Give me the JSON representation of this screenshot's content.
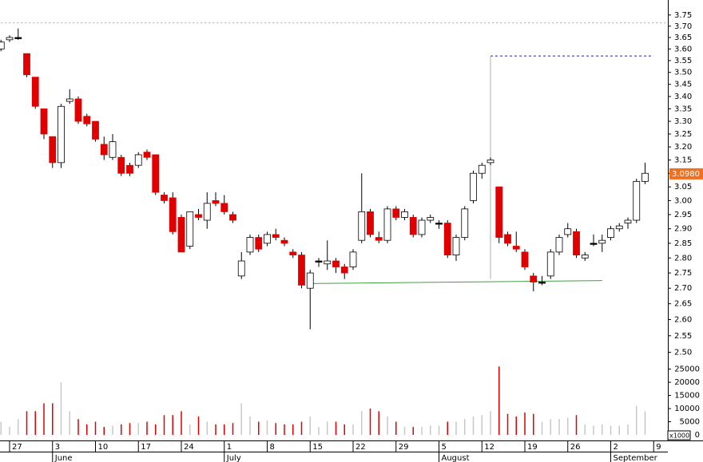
{
  "chart_data": {
    "type": "candlestick",
    "log_scale": true,
    "up_color": "#ffffff",
    "down_color": "#e00000",
    "doji_color": "#000000",
    "volume_color": "#c8c8c8",
    "categories": [
      null,
      "27",
      null,
      null,
      null,
      null,
      "3",
      null,
      null,
      null,
      null,
      "10",
      null,
      null,
      null,
      null,
      "17",
      null,
      null,
      null,
      null,
      "24",
      null,
      null,
      null,
      null,
      "1",
      null,
      null,
      null,
      null,
      "8",
      null,
      null,
      null,
      null,
      "15",
      null,
      null,
      null,
      null,
      "22",
      null,
      null,
      null,
      null,
      "29",
      null,
      null,
      null,
      null,
      "5",
      null,
      null,
      null,
      null,
      "12",
      null,
      null,
      null,
      null,
      "19",
      null,
      null,
      null,
      null,
      "26",
      null,
      null,
      null,
      null,
      "2",
      null,
      null,
      null,
      null,
      "9"
    ],
    "months": [
      null,
      null,
      null,
      null,
      null,
      null,
      "June",
      null,
      null,
      null,
      null,
      null,
      null,
      null,
      null,
      null,
      null,
      null,
      null,
      null,
      null,
      null,
      null,
      null,
      null,
      null,
      "July",
      null,
      null,
      null,
      null,
      null,
      null,
      null,
      null,
      null,
      null,
      null,
      null,
      null,
      null,
      null,
      null,
      null,
      null,
      null,
      null,
      null,
      null,
      null,
      null,
      "August",
      null,
      null,
      null,
      null,
      null,
      null,
      null,
      null,
      null,
      null,
      null,
      null,
      null,
      null,
      null,
      null,
      null,
      null,
      null,
      "September",
      null,
      null,
      null,
      null,
      null
    ],
    "open": [
      3.6,
      3.64,
      3.65,
      3.58,
      3.48,
      3.35,
      3.24,
      3.14,
      3.38,
      3.39,
      3.32,
      3.3,
      3.21,
      3.16,
      3.16,
      3.13,
      3.13,
      3.18,
      3.17,
      3.02,
      3.01,
      2.94,
      2.84,
      2.95,
      2.93,
      3.0,
      2.99,
      2.95,
      2.74,
      2.82,
      2.87,
      2.85,
      2.88,
      2.86,
      2.82,
      2.81,
      2.7,
      2.79,
      2.78,
      2.79,
      2.77,
      2.77,
      2.86,
      2.96,
      2.87,
      2.86,
      2.97,
      2.94,
      2.94,
      2.88,
      2.93,
      2.92,
      2.92,
      2.81,
      2.87,
      3.0,
      3.1,
      3.14,
      3.05,
      2.88,
      2.84,
      2.82,
      2.74,
      2.72,
      2.74,
      2.82,
      2.88,
      2.89,
      2.8,
      2.85,
      2.85,
      2.87,
      2.9,
      2.92,
      2.93,
      3.07,
      null
    ],
    "high": [
      3.64,
      3.66,
      3.69,
      3.58,
      3.48,
      3.35,
      3.24,
      3.37,
      3.43,
      3.4,
      3.33,
      3.3,
      3.24,
      3.25,
      3.17,
      3.14,
      3.18,
      3.19,
      3.17,
      3.03,
      3.03,
      2.95,
      2.96,
      2.97,
      3.03,
      3.03,
      3.02,
      2.96,
      2.82,
      2.88,
      2.88,
      2.89,
      2.9,
      2.87,
      2.83,
      2.82,
      2.76,
      2.8,
      2.86,
      2.8,
      2.78,
      2.83,
      3.1,
      2.97,
      2.89,
      2.98,
      2.98,
      2.97,
      2.95,
      2.94,
      2.95,
      2.93,
      2.93,
      2.88,
      2.98,
      3.11,
      3.14,
      3.16,
      3.05,
      2.89,
      2.89,
      2.83,
      2.75,
      2.74,
      2.83,
      2.88,
      2.92,
      2.9,
      2.82,
      2.88,
      2.88,
      2.91,
      2.92,
      2.94,
      3.08,
      3.14,
      null
    ],
    "low": [
      3.59,
      3.63,
      3.64,
      3.48,
      3.35,
      3.23,
      3.12,
      3.12,
      3.37,
      3.29,
      3.28,
      3.22,
      3.15,
      3.15,
      3.09,
      3.09,
      3.12,
      3.15,
      3.02,
      2.99,
      2.88,
      2.82,
      2.83,
      2.93,
      2.9,
      2.98,
      2.95,
      2.92,
      2.73,
      2.81,
      2.82,
      2.84,
      2.86,
      2.84,
      2.8,
      2.7,
      2.57,
      2.77,
      2.76,
      2.75,
      2.73,
      2.76,
      2.85,
      2.87,
      2.85,
      2.85,
      2.93,
      2.93,
      2.87,
      2.87,
      2.92,
      2.9,
      2.8,
      2.79,
      2.86,
      2.99,
      3.08,
      3.13,
      2.85,
      2.84,
      2.82,
      2.76,
      2.69,
      2.71,
      2.73,
      2.81,
      2.87,
      2.8,
      2.79,
      2.84,
      2.82,
      2.86,
      2.89,
      2.9,
      2.92,
      3.06,
      null
    ],
    "close": [
      3.63,
      3.65,
      3.65,
      3.49,
      3.36,
      3.25,
      3.14,
      3.36,
      3.39,
      3.3,
      3.29,
      3.23,
      3.17,
      3.22,
      3.1,
      3.1,
      3.17,
      3.16,
      3.03,
      3.0,
      2.89,
      2.82,
      2.96,
      2.94,
      2.99,
      2.99,
      2.96,
      2.93,
      2.79,
      2.87,
      2.83,
      2.88,
      2.87,
      2.85,
      2.81,
      2.71,
      2.75,
      2.79,
      2.79,
      2.77,
      2.75,
      2.82,
      2.96,
      2.88,
      2.86,
      2.97,
      2.94,
      2.96,
      2.88,
      2.93,
      2.94,
      2.92,
      2.81,
      2.87,
      2.97,
      3.1,
      3.13,
      3.15,
      2.87,
      2.85,
      2.83,
      2.77,
      2.72,
      2.72,
      2.82,
      2.87,
      2.9,
      2.81,
      2.81,
      2.85,
      2.86,
      2.9,
      2.91,
      2.93,
      3.07,
      3.1,
      null
    ],
    "volume": [
      5000,
      3000,
      6000,
      9000,
      9000,
      12000,
      12000,
      20000,
      9000,
      6000,
      4000,
      5000,
      3000,
      3500,
      4000,
      4500,
      4500,
      5000,
      4000,
      7500,
      7500,
      9000,
      4000,
      7000,
      5000,
      4000,
      4000,
      4500,
      12000,
      7000,
      5000,
      5500,
      4500,
      4000,
      4000,
      5000,
      7000,
      3000,
      5000,
      5000,
      4000,
      4000,
      9000,
      10000,
      9000,
      7000,
      5000,
      3000,
      3000,
      3000,
      3500,
      3500,
      5000,
      5000,
      6000,
      7000,
      7500,
      9000,
      26000,
      8000,
      7000,
      8500,
      8000,
      5000,
      6000,
      6000,
      6500,
      7500,
      4000,
      3500,
      4000,
      3500,
      3500,
      4000,
      11000,
      9000,
      null
    ],
    "ylim": [
      2.47,
      3.8
    ],
    "yticks": [
      {
        "value": 2.5,
        "label": "2.50"
      },
      2.55,
      {
        "value": 2.6,
        "label": "2.60"
      },
      2.65,
      {
        "value": 2.7,
        "label": "2.70"
      },
      2.75,
      {
        "value": 2.8,
        "label": "2.80"
      },
      2.85,
      {
        "value": 2.9,
        "label": "2.90"
      },
      2.95,
      {
        "value": 3.0,
        "label": "3.00"
      },
      3.05,
      {
        "value": 3.1,
        "label": "3.10"
      },
      3.15,
      {
        "value": 3.2,
        "label": "3.20"
      },
      3.25,
      {
        "value": 3.3,
        "label": "3.30"
      },
      3.35,
      {
        "value": 3.4,
        "label": "3.40"
      },
      3.45,
      {
        "value": 3.5,
        "label": "3.50"
      },
      3.55,
      {
        "value": 3.6,
        "label": "3.60"
      },
      3.65,
      {
        "value": 3.7,
        "label": "3.70"
      },
      3.75
    ],
    "volume_lim": [
      0,
      27000
    ],
    "volume_ticks": [
      0,
      5000,
      10000,
      15000,
      20000,
      25000
    ],
    "volume_unit": "x1000",
    "last_price": {
      "value": 3.098,
      "label": "3.0980",
      "color": "#f07020"
    },
    "drawings": [
      {
        "color": "#aaaaaa",
        "dash": "2,3",
        "from": [
          0,
          3.715
        ],
        "to": [
          78,
          3.715
        ]
      },
      {
        "color": "#2020c0",
        "dash": "3,3",
        "from": [
          57,
          3.57
        ],
        "to": [
          76,
          3.57
        ]
      },
      {
        "color": "#b0b0b0",
        "dash": "",
        "from": [
          57,
          3.57
        ],
        "to": [
          57,
          2.73
        ]
      },
      {
        "color": "#40a040",
        "dash": "",
        "from": [
          36,
          2.715
        ],
        "to": [
          70,
          2.725
        ]
      }
    ]
  }
}
